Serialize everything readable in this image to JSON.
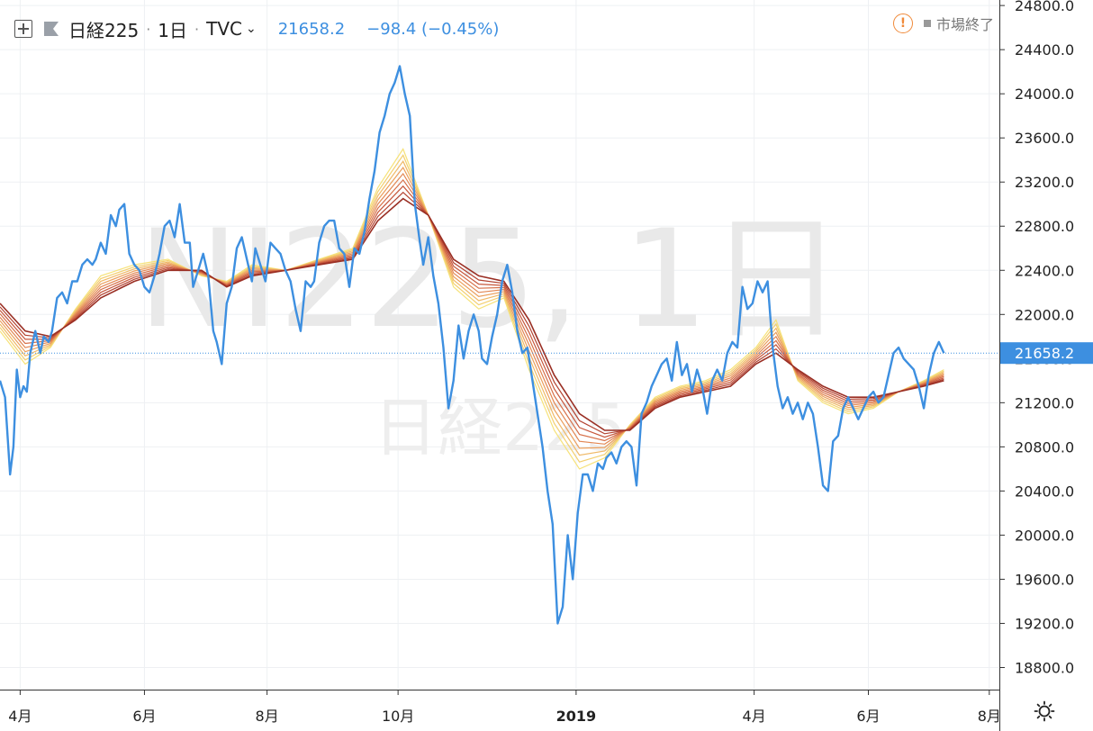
{
  "legend": {
    "symbol": "日経225",
    "interval": "1日",
    "source": "TVC",
    "last_price": "21658.2",
    "change": "−98.4 (−0.45%)",
    "market_status": "市場終了",
    "expand_icon": "plus-square-icon",
    "flag_icon": "flag-icon",
    "warning_icon": "warning-circle-icon"
  },
  "watermark": {
    "line1": "NI225, 1日",
    "line2": "日経225"
  },
  "settings_icon": "sun-gear-icon",
  "colors": {
    "price_line": "#3d8fe0",
    "axis_text": "#333333",
    "ribbon": [
      "#f6e27a",
      "#f3cf6f",
      "#efb866",
      "#eb9f5c",
      "#e28753",
      "#d66f48",
      "#c7583d",
      "#b34331",
      "#9a2f24"
    ]
  },
  "chart_data": {
    "type": "line",
    "title": "",
    "y_axis": {
      "ticks": [
        18800,
        19200,
        19600,
        20000,
        20400,
        20800,
        21200,
        21600,
        22000,
        22400,
        22800,
        23200,
        23600,
        24000,
        24400,
        24800
      ],
      "range": [
        18600,
        24850
      ],
      "tick_format": "0.0"
    },
    "x_axis": {
      "labels": [
        {
          "t": 0.12,
          "label": "4月"
        },
        {
          "t": 0.86,
          "label": "6月"
        },
        {
          "t": 1.59,
          "label": "8月"
        },
        {
          "t": 2.37,
          "label": "10月"
        },
        {
          "t": 3.43,
          "label": "2019",
          "bold": true
        },
        {
          "t": 4.49,
          "label": "4月"
        },
        {
          "t": 5.17,
          "label": "6月"
        },
        {
          "t": 5.89,
          "label": "8月"
        }
      ]
    },
    "last_price_label": "21658.2",
    "series": [
      {
        "name": "日経225",
        "points": [
          [
            0.0,
            21400
          ],
          [
            0.03,
            21250
          ],
          [
            0.06,
            20550
          ],
          [
            0.08,
            20800
          ],
          [
            0.1,
            21500
          ],
          [
            0.12,
            21250
          ],
          [
            0.14,
            21350
          ],
          [
            0.16,
            21300
          ],
          [
            0.18,
            21650
          ],
          [
            0.21,
            21850
          ],
          [
            0.24,
            21650
          ],
          [
            0.26,
            21800
          ],
          [
            0.29,
            21750
          ],
          [
            0.31,
            21850
          ],
          [
            0.34,
            22150
          ],
          [
            0.37,
            22200
          ],
          [
            0.4,
            22100
          ],
          [
            0.43,
            22300
          ],
          [
            0.46,
            22300
          ],
          [
            0.49,
            22450
          ],
          [
            0.52,
            22500
          ],
          [
            0.55,
            22450
          ],
          [
            0.57,
            22500
          ],
          [
            0.6,
            22650
          ],
          [
            0.63,
            22550
          ],
          [
            0.66,
            22900
          ],
          [
            0.69,
            22800
          ],
          [
            0.71,
            22950
          ],
          [
            0.74,
            23000
          ],
          [
            0.77,
            22550
          ],
          [
            0.8,
            22450
          ],
          [
            0.83,
            22400
          ],
          [
            0.86,
            22250
          ],
          [
            0.89,
            22200
          ],
          [
            0.92,
            22350
          ],
          [
            0.95,
            22550
          ],
          [
            0.98,
            22800
          ],
          [
            1.01,
            22850
          ],
          [
            1.04,
            22700
          ],
          [
            1.07,
            23000
          ],
          [
            1.1,
            22650
          ],
          [
            1.13,
            22650
          ],
          [
            1.15,
            22250
          ],
          [
            1.18,
            22400
          ],
          [
            1.21,
            22550
          ],
          [
            1.24,
            22350
          ],
          [
            1.27,
            21850
          ],
          [
            1.29,
            21750
          ],
          [
            1.32,
            21550
          ],
          [
            1.35,
            22100
          ],
          [
            1.38,
            22250
          ],
          [
            1.41,
            22600
          ],
          [
            1.44,
            22700
          ],
          [
            1.47,
            22500
          ],
          [
            1.5,
            22300
          ],
          [
            1.52,
            22600
          ],
          [
            1.55,
            22450
          ],
          [
            1.58,
            22300
          ],
          [
            1.61,
            22650
          ],
          [
            1.64,
            22600
          ],
          [
            1.67,
            22550
          ],
          [
            1.7,
            22400
          ],
          [
            1.73,
            22300
          ],
          [
            1.76,
            22050
          ],
          [
            1.79,
            21850
          ],
          [
            1.82,
            22300
          ],
          [
            1.85,
            22250
          ],
          [
            1.87,
            22300
          ],
          [
            1.9,
            22650
          ],
          [
            1.93,
            22800
          ],
          [
            1.96,
            22850
          ],
          [
            1.99,
            22850
          ],
          [
            2.02,
            22600
          ],
          [
            2.05,
            22550
          ],
          [
            2.08,
            22250
          ],
          [
            2.11,
            22600
          ],
          [
            2.14,
            22550
          ],
          [
            2.17,
            22750
          ],
          [
            2.2,
            23050
          ],
          [
            2.23,
            23300
          ],
          [
            2.26,
            23650
          ],
          [
            2.29,
            23800
          ],
          [
            2.32,
            24000
          ],
          [
            2.35,
            24100
          ],
          [
            2.38,
            24250
          ],
          [
            2.41,
            24000
          ],
          [
            2.44,
            23800
          ],
          [
            2.47,
            23000
          ],
          [
            2.5,
            22650
          ],
          [
            2.52,
            22450
          ],
          [
            2.55,
            22700
          ],
          [
            2.58,
            22350
          ],
          [
            2.61,
            22100
          ],
          [
            2.64,
            21700
          ],
          [
            2.67,
            21150
          ],
          [
            2.7,
            21400
          ],
          [
            2.73,
            21900
          ],
          [
            2.76,
            21600
          ],
          [
            2.79,
            21850
          ],
          [
            2.82,
            22000
          ],
          [
            2.85,
            21850
          ],
          [
            2.87,
            21600
          ],
          [
            2.9,
            21550
          ],
          [
            2.93,
            21800
          ],
          [
            2.96,
            22000
          ],
          [
            2.99,
            22300
          ],
          [
            3.02,
            22450
          ],
          [
            3.05,
            22200
          ],
          [
            3.08,
            21850
          ],
          [
            3.11,
            21650
          ],
          [
            3.14,
            21700
          ],
          [
            3.17,
            21400
          ],
          [
            3.2,
            21100
          ],
          [
            3.23,
            20800
          ],
          [
            3.26,
            20400
          ],
          [
            3.29,
            20100
          ],
          [
            3.32,
            19200
          ],
          [
            3.35,
            19350
          ],
          [
            3.38,
            20000
          ],
          [
            3.41,
            19600
          ],
          [
            3.44,
            20200
          ],
          [
            3.47,
            20550
          ],
          [
            3.5,
            20550
          ],
          [
            3.53,
            20400
          ],
          [
            3.56,
            20650
          ],
          [
            3.59,
            20600
          ],
          [
            3.61,
            20700
          ],
          [
            3.64,
            20750
          ],
          [
            3.67,
            20650
          ],
          [
            3.7,
            20800
          ],
          [
            3.73,
            20850
          ],
          [
            3.76,
            20800
          ],
          [
            3.79,
            20450
          ],
          [
            3.82,
            21100
          ],
          [
            3.85,
            21200
          ],
          [
            3.88,
            21350
          ],
          [
            3.91,
            21450
          ],
          [
            3.94,
            21550
          ],
          [
            3.97,
            21600
          ],
          [
            4.0,
            21400
          ],
          [
            4.03,
            21750
          ],
          [
            4.06,
            21450
          ],
          [
            4.09,
            21550
          ],
          [
            4.12,
            21300
          ],
          [
            4.15,
            21500
          ],
          [
            4.18,
            21350
          ],
          [
            4.21,
            21100
          ],
          [
            4.24,
            21400
          ],
          [
            4.27,
            21500
          ],
          [
            4.3,
            21400
          ],
          [
            4.33,
            21650
          ],
          [
            4.36,
            21750
          ],
          [
            4.39,
            21700
          ],
          [
            4.42,
            22250
          ],
          [
            4.45,
            22050
          ],
          [
            4.48,
            22100
          ],
          [
            4.51,
            22300
          ],
          [
            4.54,
            22200
          ],
          [
            4.57,
            22300
          ],
          [
            4.6,
            21700
          ],
          [
            4.63,
            21350
          ],
          [
            4.66,
            21150
          ],
          [
            4.69,
            21250
          ],
          [
            4.72,
            21100
          ],
          [
            4.75,
            21200
          ],
          [
            4.78,
            21050
          ],
          [
            4.81,
            21200
          ],
          [
            4.84,
            21100
          ],
          [
            4.87,
            20800
          ],
          [
            4.9,
            20450
          ],
          [
            4.93,
            20400
          ],
          [
            4.96,
            20850
          ],
          [
            4.99,
            20900
          ],
          [
            5.02,
            21150
          ],
          [
            5.05,
            21250
          ],
          [
            5.08,
            21150
          ],
          [
            5.11,
            21050
          ],
          [
            5.14,
            21150
          ],
          [
            5.17,
            21250
          ],
          [
            5.2,
            21300
          ],
          [
            5.23,
            21200
          ],
          [
            5.26,
            21250
          ],
          [
            5.29,
            21450
          ],
          [
            5.32,
            21650
          ],
          [
            5.35,
            21700
          ],
          [
            5.38,
            21600
          ],
          [
            5.41,
            21550
          ],
          [
            5.44,
            21500
          ],
          [
            5.47,
            21350
          ],
          [
            5.5,
            21150
          ],
          [
            5.53,
            21450
          ],
          [
            5.56,
            21650
          ],
          [
            5.59,
            21750
          ],
          [
            5.62,
            21650
          ]
        ]
      },
      {
        "name": "",
        "points": [
          [
            0.0,
            22100
          ],
          [
            0.15,
            21850
          ],
          [
            0.3,
            21800
          ],
          [
            0.45,
            21950
          ],
          [
            0.6,
            22150
          ],
          [
            0.8,
            22300
          ],
          [
            1.0,
            22400
          ],
          [
            1.2,
            22400
          ],
          [
            1.35,
            22250
          ],
          [
            1.5,
            22350
          ],
          [
            1.7,
            22400
          ],
          [
            1.9,
            22450
          ],
          [
            2.1,
            22500
          ],
          [
            2.25,
            22850
          ],
          [
            2.4,
            23050
          ],
          [
            2.55,
            22900
          ],
          [
            2.7,
            22500
          ],
          [
            2.85,
            22350
          ],
          [
            3.0,
            22300
          ],
          [
            3.15,
            21950
          ],
          [
            3.3,
            21450
          ],
          [
            3.45,
            21100
          ],
          [
            3.6,
            20950
          ],
          [
            3.75,
            20950
          ],
          [
            3.9,
            21150
          ],
          [
            4.05,
            21250
          ],
          [
            4.2,
            21300
          ],
          [
            4.35,
            21350
          ],
          [
            4.5,
            21550
          ],
          [
            4.62,
            21650
          ],
          [
            4.75,
            21500
          ],
          [
            4.9,
            21350
          ],
          [
            5.05,
            21250
          ],
          [
            5.2,
            21250
          ],
          [
            5.35,
            21300
          ],
          [
            5.5,
            21350
          ],
          [
            5.62,
            21400
          ]
        ]
      },
      {
        "name": "",
        "points": [
          [
            0.0,
            21850
          ],
          [
            0.15,
            21550
          ],
          [
            0.3,
            21700
          ],
          [
            0.45,
            22050
          ],
          [
            0.6,
            22350
          ],
          [
            0.8,
            22450
          ],
          [
            1.0,
            22500
          ],
          [
            1.2,
            22350
          ],
          [
            1.35,
            22300
          ],
          [
            1.5,
            22450
          ],
          [
            1.7,
            22400
          ],
          [
            1.9,
            22500
          ],
          [
            2.1,
            22600
          ],
          [
            2.25,
            23150
          ],
          [
            2.4,
            23500
          ],
          [
            2.55,
            22900
          ],
          [
            2.7,
            22250
          ],
          [
            2.85,
            22050
          ],
          [
            3.0,
            22150
          ],
          [
            3.15,
            21500
          ],
          [
            3.3,
            20950
          ],
          [
            3.45,
            20600
          ],
          [
            3.6,
            20700
          ],
          [
            3.75,
            21000
          ],
          [
            3.9,
            21250
          ],
          [
            4.05,
            21350
          ],
          [
            4.2,
            21400
          ],
          [
            4.35,
            21500
          ],
          [
            4.5,
            21700
          ],
          [
            4.62,
            21950
          ],
          [
            4.75,
            21400
          ],
          [
            4.9,
            21200
          ],
          [
            5.05,
            21100
          ],
          [
            5.2,
            21150
          ],
          [
            5.35,
            21300
          ],
          [
            5.5,
            21400
          ],
          [
            5.62,
            21500
          ]
        ]
      }
    ]
  }
}
